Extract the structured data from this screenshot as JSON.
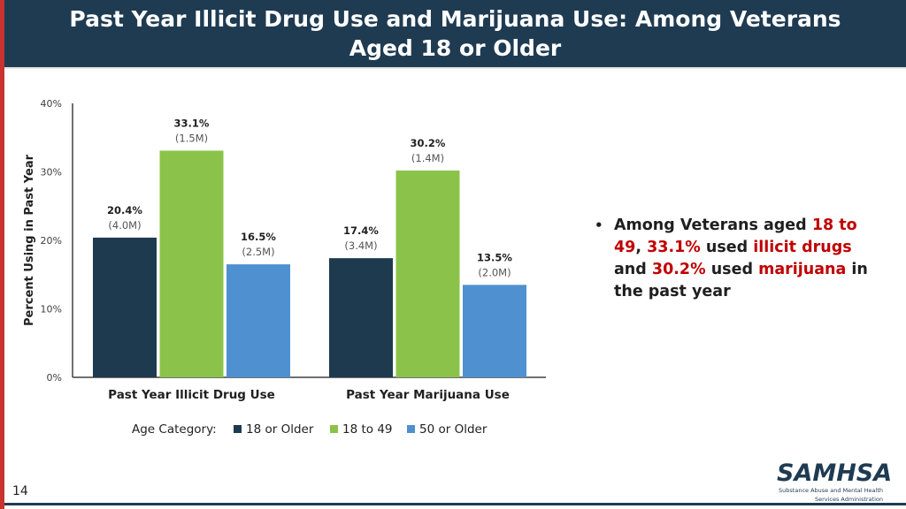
{
  "header": {
    "title_line1": "Past Year Illicit Drug Use and Marijuana Use: Among Veterans",
    "title_line2": "Aged 18 or Older"
  },
  "chart_data": {
    "type": "bar",
    "title": "",
    "ylabel": "Percent Using in Past Year",
    "xlabel": "",
    "ylim": [
      0,
      40
    ],
    "yticks": [
      "0%",
      "10%",
      "20%",
      "30%",
      "40%"
    ],
    "categories": [
      "Past Year Illicit Drug Use",
      "Past Year Marijuana Use"
    ],
    "legend_title": "Age Category:",
    "legend_position": "bottom",
    "grid": false,
    "series": [
      {
        "name": "18 or Older",
        "color": "#1e3a4f",
        "values": [
          20.4,
          17.4
        ],
        "labels": [
          "20.4%",
          "17.4%"
        ],
        "sublabels": [
          "(4.0M)",
          "(3.4M)"
        ]
      },
      {
        "name": "18 to 49",
        "color": "#8bc34a",
        "values": [
          33.1,
          30.2
        ],
        "labels": [
          "33.1%",
          "30.2%"
        ],
        "sublabels": [
          "(1.5M)",
          "(1.4M)"
        ]
      },
      {
        "name": "50 or Older",
        "color": "#4e90d0",
        "values": [
          16.5,
          13.5
        ],
        "labels": [
          "16.5%",
          "13.5%"
        ],
        "sublabels": [
          "(2.5M)",
          "(2.0M)"
        ]
      }
    ]
  },
  "bullet": {
    "p1": "Among Veterans aged ",
    "h1": "18 to 49",
    "p2": ", ",
    "h2": "33.1%",
    "p3": " used ",
    "h3": "illicit drugs",
    "p4": " and ",
    "h4": "30.2%",
    "p5": " used ",
    "h5": "marijuana",
    "p6": " in the past year"
  },
  "footer": {
    "page_number": "14",
    "logo_text": "SAMHSA",
    "logo_subtext_1": "Substance Abuse and Mental Health",
    "logo_subtext_2": "Services Administration"
  }
}
